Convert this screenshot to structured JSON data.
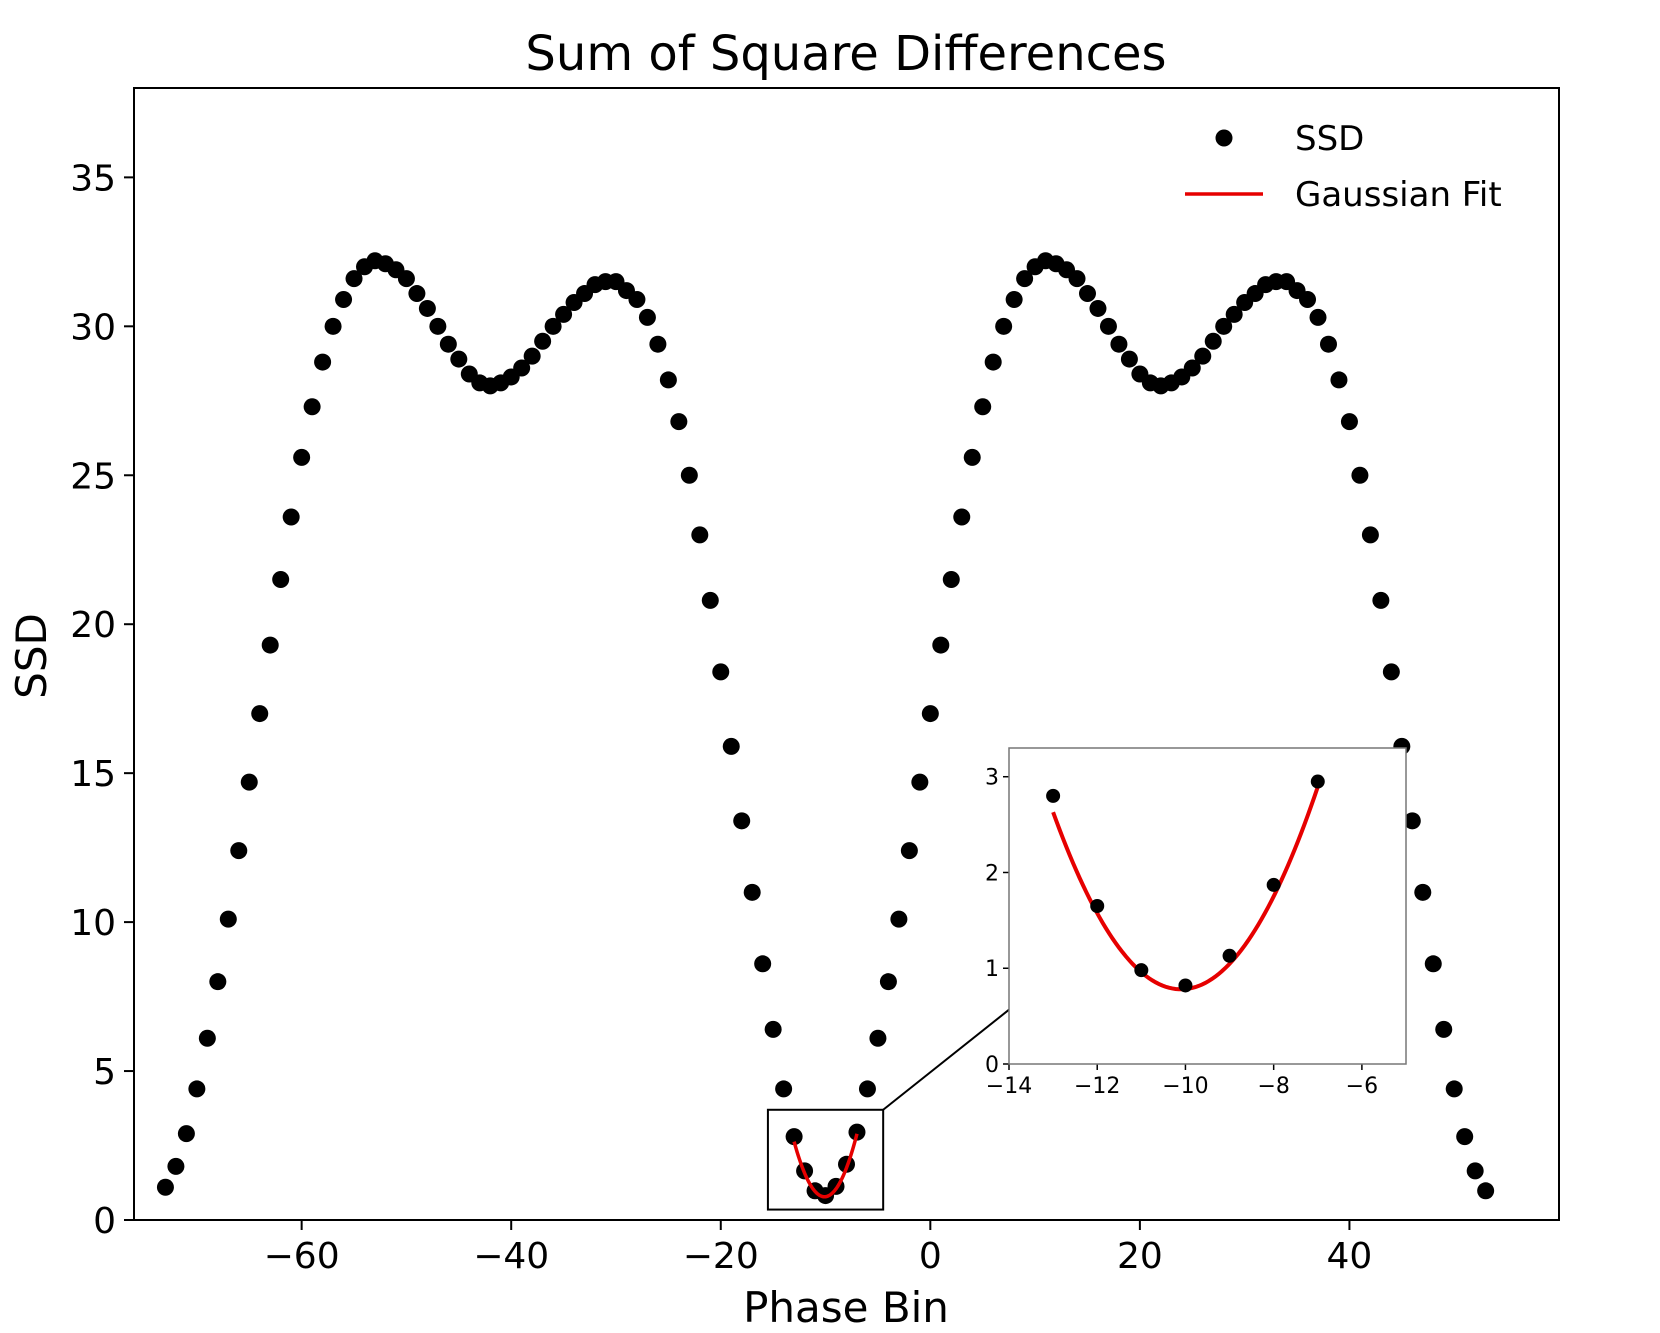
{
  "chart_data": {
    "type": "scatter",
    "title": "Sum of Square Differences",
    "xlabel": "Phase Bin",
    "ylabel": "SSD",
    "xlim": [
      -76,
      60
    ],
    "ylim": [
      0,
      38
    ],
    "xticks": [
      -60,
      -40,
      -20,
      0,
      20,
      40
    ],
    "xtick_labels": [
      "−60",
      "−40",
      "−20",
      "0",
      "20",
      "40"
    ],
    "yticks": [
      0,
      5,
      10,
      15,
      20,
      25,
      30,
      35
    ],
    "ytick_labels": [
      "0",
      "5",
      "10",
      "15",
      "20",
      "25",
      "30",
      "35"
    ],
    "grid": false,
    "legend_position": "top-right",
    "legend": [
      {
        "label": "SSD",
        "marker": "dot",
        "color": "#000000"
      },
      {
        "label": "Gaussian Fit",
        "marker": "line",
        "color": "#e60000"
      }
    ],
    "series": [
      {
        "name": "SSD",
        "color": "#000000",
        "x": [
          -73,
          -72,
          -71,
          -70,
          -69,
          -68,
          -67,
          -66,
          -65,
          -64,
          -63,
          -62,
          -61,
          -60,
          -59,
          -58,
          -57,
          -56,
          -55,
          -54,
          -53,
          -52,
          -51,
          -50,
          -49,
          -48,
          -47,
          -46,
          -45,
          -44,
          -43,
          -42,
          -41,
          -40,
          -39,
          -38,
          -37,
          -36,
          -35,
          -34,
          -33,
          -32,
          -31,
          -30,
          -29,
          -28,
          -27,
          -26,
          -25,
          -24,
          -23,
          -22,
          -21,
          -20,
          -19,
          -18,
          -17,
          -16,
          -15,
          -14,
          -13,
          -12,
          -11,
          -10,
          -9,
          -8,
          -7,
          -6,
          -5,
          -4,
          -3,
          -2,
          -1,
          0,
          1,
          2,
          3,
          4,
          5,
          6,
          7,
          8,
          9,
          10,
          11,
          12,
          13,
          14,
          15,
          16,
          17,
          18,
          19,
          20,
          21,
          22,
          23,
          24,
          25,
          26,
          27,
          28,
          29,
          30,
          31,
          32,
          33,
          34,
          35,
          36,
          37,
          38,
          39,
          40,
          41,
          42,
          43,
          44,
          45,
          46,
          47,
          48,
          49,
          50,
          51,
          52,
          53
        ],
        "y": [
          1.1,
          1.8,
          2.9,
          4.4,
          6.1,
          8.0,
          10.1,
          12.4,
          14.7,
          17.0,
          19.3,
          21.5,
          23.6,
          25.6,
          27.3,
          28.8,
          30.0,
          30.9,
          31.6,
          32.0,
          32.2,
          32.1,
          31.9,
          31.6,
          31.1,
          30.6,
          30.0,
          29.4,
          28.9,
          28.4,
          28.1,
          28.0,
          28.1,
          28.3,
          28.6,
          29.0,
          29.5,
          30.0,
          30.4,
          30.8,
          31.1,
          31.4,
          31.5,
          31.5,
          31.2,
          30.9,
          30.3,
          29.4,
          28.2,
          26.8,
          25.0,
          23.0,
          20.8,
          18.4,
          15.9,
          13.4,
          11.0,
          8.6,
          6.4,
          4.4,
          2.8,
          1.65,
          0.98,
          0.82,
          1.13,
          1.87,
          2.95,
          4.4,
          6.1,
          8.0,
          10.1,
          12.4,
          14.7,
          17.0,
          19.3,
          21.5,
          23.6,
          25.6,
          27.3,
          28.8,
          30.0,
          30.9,
          31.6,
          32.0,
          32.2,
          32.1,
          31.9,
          31.6,
          31.1,
          30.6,
          30.0,
          29.4,
          28.9,
          28.4,
          28.1,
          28.0,
          28.1,
          28.3,
          28.6,
          29.0,
          29.5,
          30.0,
          30.4,
          30.8,
          31.1,
          31.4,
          31.5,
          31.5,
          31.2,
          30.9,
          30.3,
          29.4,
          28.2,
          26.8,
          25.0,
          23.0,
          20.8,
          18.4,
          15.9,
          13.4,
          11.0,
          8.6,
          6.4,
          4.4,
          2.8,
          1.65,
          0.98
        ]
      },
      {
        "name": "Gaussian Fit",
        "color": "#e60000",
        "fit_range": [
          -13,
          -7
        ],
        "center": -10.1,
        "minimum": 0.78,
        "curvature": 0.22
      }
    ],
    "inset": {
      "xlim": [
        -14,
        -5
      ],
      "ylim": [
        0,
        3.3
      ],
      "xticks": [
        -14,
        -12,
        -10,
        -8,
        -6
      ],
      "xtick_labels": [
        "−14",
        "−12",
        "−10",
        "−8",
        "−6"
      ],
      "yticks": [
        0,
        1,
        2,
        3
      ],
      "ytick_labels": [
        "0",
        "1",
        "2",
        "3"
      ],
      "zoom_region": {
        "x": [
          -15.5,
          -4.5
        ],
        "y": [
          0.35,
          3.7
        ]
      },
      "points": {
        "x": [
          -13,
          -12,
          -11,
          -10,
          -9,
          -8,
          -7
        ],
        "y": [
          2.8,
          1.65,
          0.98,
          0.82,
          1.13,
          1.87,
          2.95
        ]
      }
    }
  }
}
